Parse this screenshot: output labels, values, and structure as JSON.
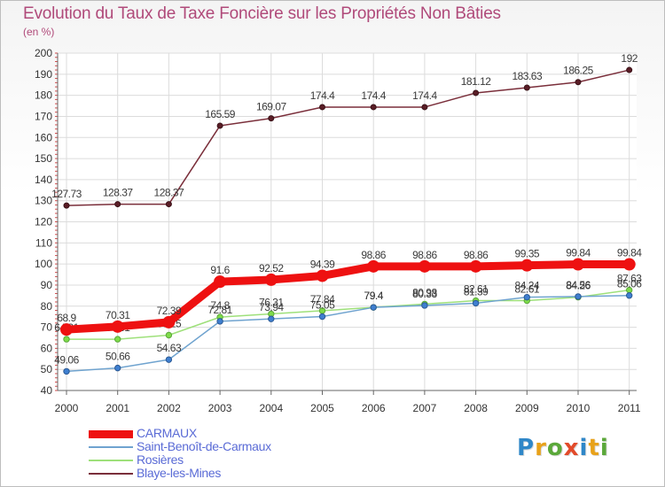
{
  "title": "Evolution du Taux de Taxe Foncière sur les Propriétés Non Bâties",
  "subtitle": "(en %)",
  "logo": {
    "letters": [
      "P",
      "r",
      "o",
      "x",
      "i",
      "t",
      "i"
    ],
    "colors": [
      "#2f87c8",
      "#e8a21a",
      "#5ba83a",
      "#e24a2a",
      "#2f87c8",
      "#e8a21a",
      "#5ba83a"
    ]
  },
  "chart_data": {
    "type": "line",
    "title": "Evolution du Taux de Taxe Foncière sur les Propriétés Non Bâties",
    "ylabel": "(en %)",
    "categories": [
      "2000",
      "2001",
      "2002",
      "2003",
      "2004",
      "2005",
      "2006",
      "2007",
      "2008",
      "2009",
      "2010",
      "2011"
    ],
    "ylim": [
      40,
      200
    ],
    "yticks": [
      "40",
      "50",
      "60",
      "70",
      "80",
      "90",
      "100",
      "110",
      "120",
      "130",
      "140",
      "150",
      "160",
      "170",
      "180",
      "190",
      "200"
    ],
    "grid": true,
    "legend": "bottom-left",
    "series": [
      {
        "name": "CARMAUX",
        "color": "#ee1111",
        "values": [
          68.9,
          70.31,
          72.39,
          91.6,
          92.52,
          94.39,
          98.86,
          98.86,
          98.86,
          99.35,
          99.84,
          99.84
        ],
        "labels": [
          "68.9",
          "70.31",
          "72.39",
          "91.6",
          "92.52",
          "94.39",
          "98.86",
          "98.86",
          "98.86",
          "99.35",
          "99.84",
          "99.84"
        ]
      },
      {
        "name": "Saint-Benoît-de-Carmaux",
        "color": "#6fa3cf",
        "values": [
          49.06,
          50.66,
          54.63,
          72.81,
          73.94,
          75.05,
          79.4,
          80.33,
          81.39,
          84.24,
          84.56,
          85.06
        ],
        "labels": [
          "49.06",
          "50.66",
          "54.63",
          "72.81",
          "73.94",
          "75.05",
          "79.4",
          "80.33",
          "81.39",
          "84.24",
          "84.56",
          "85.06"
        ]
      },
      {
        "name": "Rosières",
        "color": "#9ee07a",
        "values": [
          64.31,
          64.31,
          66.25,
          74.8,
          76.31,
          77.84,
          79.4,
          80.98,
          82.61,
          82.61,
          84.26,
          87.63
        ],
        "labels": [
          "64.31",
          "64.31",
          "66.25",
          "74.8",
          "76.31",
          "77.84",
          "79.4",
          "80.98",
          "82.61",
          "82.61",
          "84.26",
          "87.63"
        ]
      },
      {
        "name": "Blaye-les-Mines",
        "color": "#7a2e3a",
        "values": [
          127.73,
          128.37,
          128.37,
          165.59,
          169.07,
          174.4,
          174.4,
          174.4,
          181.12,
          183.63,
          186.25,
          192
        ],
        "labels": [
          "127.73",
          "128.37",
          "128.37",
          "165.59",
          "169.07",
          "174.4",
          "174.4",
          "174.4",
          "181.12",
          "183.63",
          "186.25",
          "192"
        ]
      }
    ]
  }
}
